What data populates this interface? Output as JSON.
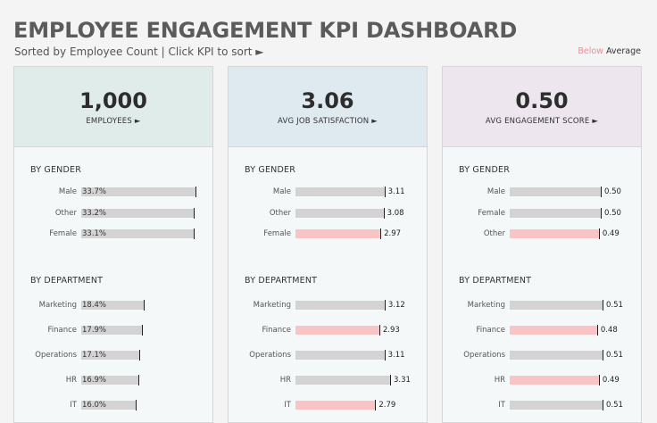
{
  "title": "EMPLOYEE ENGAGEMENT KPI DASHBOARD",
  "subtitle": "Sorted by Employee Count | Click KPI to sort ►",
  "legend": {
    "below": "Below",
    "average": "Average"
  },
  "colors": {
    "below": "#f8c4c6",
    "normal": "#d3d3d3",
    "card1": "#dfecea",
    "card2": "#dfe9f0",
    "card3": "#ede6ef"
  },
  "cards": [
    {
      "value": "1,000",
      "label": "EMPLOYEES ►",
      "mode": "pct",
      "gender_title": "BY GENDER",
      "gender": [
        {
          "label": "Male",
          "display": "33.7%",
          "value": 33.7,
          "below": false
        },
        {
          "label": "Other",
          "display": "33.2%",
          "value": 33.2,
          "below": false
        },
        {
          "label": "Female",
          "display": "33.1%",
          "value": 33.1,
          "below": false
        }
      ],
      "dept_title": "BY DEPARTMENT",
      "dept": [
        {
          "label": "Marketing",
          "display": "18.4%",
          "value": 18.4,
          "below": false
        },
        {
          "label": "Finance",
          "display": "17.9%",
          "value": 17.9,
          "below": false
        },
        {
          "label": "Operations",
          "display": "17.1%",
          "value": 17.1,
          "below": false
        },
        {
          "label": "HR",
          "display": "16.9%",
          "value": 16.9,
          "below": false
        },
        {
          "label": "IT",
          "display": "16.0%",
          "value": 16.0,
          "below": false
        }
      ]
    },
    {
      "value": "3.06",
      "label": "AVG JOB SATISFACTION ►",
      "mode": "val",
      "gender_title": "BY GENDER",
      "gender": [
        {
          "label": "Male",
          "display": "3.11",
          "value": 3.11,
          "below": false
        },
        {
          "label": "Other",
          "display": "3.08",
          "value": 3.08,
          "below": false
        },
        {
          "label": "Female",
          "display": "2.97",
          "value": 2.97,
          "below": true
        }
      ],
      "dept_title": "BY DEPARTMENT",
      "dept": [
        {
          "label": "Marketing",
          "display": "3.12",
          "value": 3.12,
          "below": false
        },
        {
          "label": "Finance",
          "display": "2.93",
          "value": 2.93,
          "below": true
        },
        {
          "label": "Operations",
          "display": "3.11",
          "value": 3.11,
          "below": false
        },
        {
          "label": "HR",
          "display": "3.31",
          "value": 3.31,
          "below": false
        },
        {
          "label": "IT",
          "display": "2.79",
          "value": 2.79,
          "below": true
        }
      ]
    },
    {
      "value": "0.50",
      "label": "AVG ENGAGEMENT SCORE ►",
      "mode": "val",
      "gender_title": "BY GENDER",
      "gender": [
        {
          "label": "Male",
          "display": "0.50",
          "value": 0.5,
          "below": false
        },
        {
          "label": "Female",
          "display": "0.50",
          "value": 0.5,
          "below": false
        },
        {
          "label": "Other",
          "display": "0.49",
          "value": 0.49,
          "below": true
        }
      ],
      "dept_title": "BY DEPARTMENT",
      "dept": [
        {
          "label": "Marketing",
          "display": "0.51",
          "value": 0.51,
          "below": false
        },
        {
          "label": "Finance",
          "display": "0.48",
          "value": 0.48,
          "below": true
        },
        {
          "label": "Operations",
          "display": "0.51",
          "value": 0.51,
          "below": false
        },
        {
          "label": "HR",
          "display": "0.49",
          "value": 0.49,
          "below": true
        },
        {
          "label": "IT",
          "display": "0.51",
          "value": 0.51,
          "below": false
        }
      ]
    }
  ]
}
